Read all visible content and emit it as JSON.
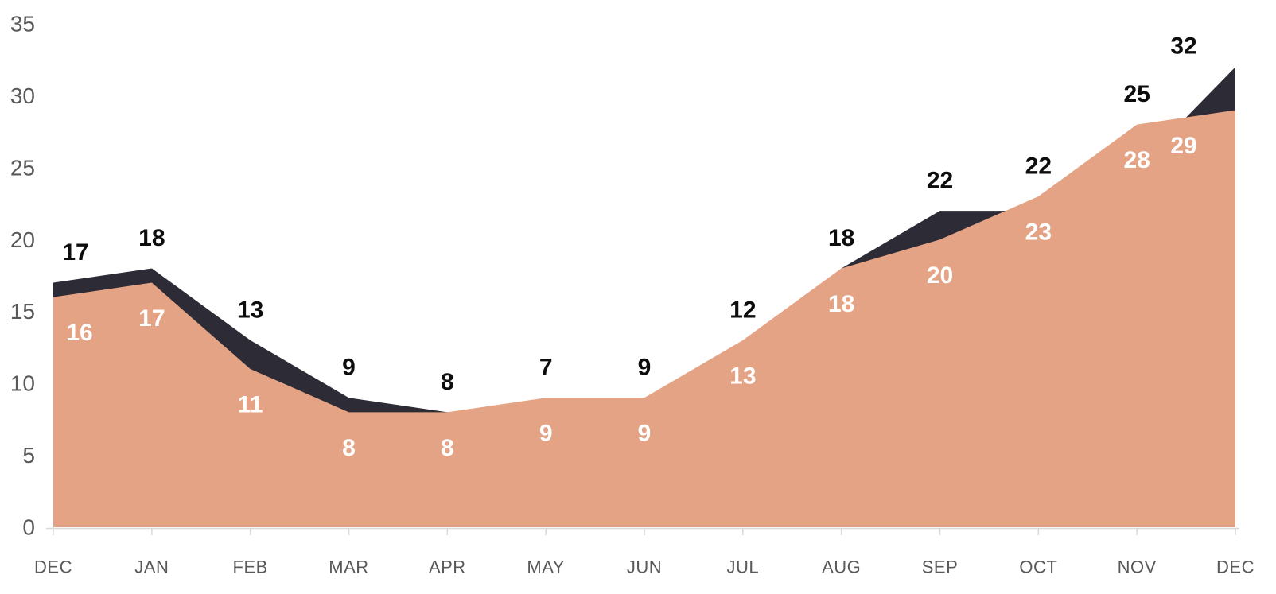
{
  "chart_data": {
    "type": "area",
    "title": "",
    "xlabel": "",
    "ylabel": "",
    "categories": [
      "DEC",
      "JAN",
      "FEB",
      "MAR",
      "APR",
      "MAY",
      "JUN",
      "JUL",
      "AUG",
      "SEP",
      "OCT",
      "NOV",
      "DEC"
    ],
    "series": [
      {
        "name": "dark",
        "color": "#2d2b36",
        "label_color": "#0d0d0d",
        "values": [
          17,
          18,
          13,
          9,
          8,
          7,
          9,
          12,
          18,
          22,
          22,
          25,
          32
        ]
      },
      {
        "name": "salmon",
        "color": "#e4a384",
        "label_color": "#ffffff",
        "values": [
          16,
          17,
          11,
          8,
          8,
          9,
          9,
          13,
          18,
          20,
          23,
          28,
          29
        ]
      }
    ],
    "y_axis": {
      "min": 0,
      "max": 35,
      "step": 5,
      "tick_labels": [
        "0",
        "5",
        "10",
        "15",
        "20",
        "25",
        "30",
        "35"
      ]
    },
    "x_tick_labels": [
      "DEC",
      "JAN",
      "FEB",
      "MAR",
      "APR",
      "MAY",
      "JUN",
      "JUL",
      "AUG",
      "SEP",
      "OCT",
      "NOV",
      "DEC"
    ],
    "grid": false,
    "legend": "none",
    "data_labels_shown": true,
    "axis_text_color": "#595959",
    "axis_line_color": "#d9d9d9",
    "background_color": "#ffffff"
  }
}
